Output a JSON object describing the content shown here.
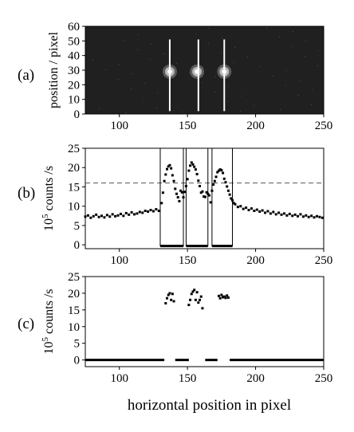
{
  "chart_data": [
    {
      "panel_label": "(a)",
      "type": "heatmap",
      "ylabel": "position / pixel",
      "xlim": [
        75,
        250
      ],
      "ylim": [
        0,
        60
      ],
      "xticks": [
        100,
        150,
        200,
        250
      ],
      "yticks": [
        0,
        10,
        20,
        30,
        40,
        50,
        60
      ],
      "background_color": "#202020",
      "spots": [
        {
          "x": 137,
          "y": 29
        },
        {
          "x": 157,
          "y": 29
        },
        {
          "x": 177,
          "y": 29
        }
      ],
      "markers": [
        {
          "x": 137,
          "y_from": 2,
          "y_to": 51
        },
        {
          "x": 158,
          "y_from": 2,
          "y_to": 51
        },
        {
          "x": 177,
          "y_from": 2,
          "y_to": 51
        }
      ]
    },
    {
      "panel_label": "(b)",
      "type": "scatter",
      "ylabel": "10",
      "ylabel_sup": "5",
      "ylabel_rest": " counts /s",
      "xlim": [
        75,
        250
      ],
      "ylim": [
        -1,
        25
      ],
      "xticks": [
        100,
        150,
        200,
        250
      ],
      "yticks": [
        0,
        5,
        10,
        15,
        20,
        25
      ],
      "threshold": 16,
      "boxes": [
        [
          130,
          147
        ],
        [
          149,
          165
        ],
        [
          168,
          183
        ]
      ],
      "series": [
        {
          "x": [
            75,
            77,
            79,
            81,
            83,
            85,
            87,
            89,
            91,
            93,
            95,
            97,
            99,
            101,
            103,
            105,
            107,
            109,
            111,
            113,
            115,
            117,
            119,
            121,
            123,
            125,
            127,
            129,
            131,
            132,
            133,
            134,
            135,
            136,
            137,
            138,
            139,
            140,
            141,
            142,
            143,
            144,
            145,
            146,
            147,
            148,
            149,
            150,
            151,
            152,
            153,
            154,
            155,
            156,
            157,
            158,
            159,
            160,
            161,
            162,
            163,
            164,
            165,
            166,
            167,
            168,
            169,
            170,
            171,
            172,
            173,
            174,
            175,
            176,
            177,
            178,
            179,
            180,
            181,
            182,
            183,
            184,
            185,
            187,
            189,
            191,
            193,
            195,
            197,
            199,
            201,
            203,
            205,
            207,
            209,
            211,
            213,
            215,
            217,
            219,
            221,
            223,
            225,
            227,
            229,
            231,
            233,
            235,
            237,
            239,
            241,
            243,
            245,
            247,
            249
          ],
          "y": [
            7.3,
            7.6,
            7,
            7.4,
            7.8,
            7.2,
            7.5,
            7.1,
            7.7,
            7.3,
            7.9,
            7.4,
            7.6,
            8,
            7.5,
            8.2,
            7.8,
            8.4,
            7.9,
            8.1,
            8.5,
            8.3,
            8.8,
            8.6,
            9,
            8.7,
            9.2,
            8.8,
            10.8,
            13.5,
            16.5,
            18.2,
            19.6,
            20.3,
            20.6,
            19.8,
            18,
            16.5,
            14.5,
            13.2,
            12.3,
            11.3,
            14,
            13.6,
            12.3,
            13.7,
            15.2,
            17,
            19.2,
            20.5,
            21.3,
            20.8,
            20.2,
            19.5,
            18.3,
            16.6,
            15.2,
            13.5,
            13.8,
            12.5,
            12.4,
            13.6,
            13.2,
            12.8,
            11,
            14,
            15.6,
            16.5,
            17.6,
            18.8,
            19.2,
            19.5,
            19.3,
            18.6,
            17.1,
            16.2,
            15.1,
            14,
            13,
            12,
            11.5,
            10.8,
            10.5,
            9.8,
            10,
            9.3,
            9.6,
            9,
            9.4,
            8.8,
            9.1,
            8.6,
            8.9,
            8.3,
            8.7,
            8.1,
            8.5,
            7.9,
            8.3,
            7.8,
            8.1,
            7.6,
            8,
            7.5,
            7.8,
            7.4,
            7.9,
            7.3,
            7.6,
            7.2,
            7.5,
            7.1,
            7.4,
            7.2,
            7
          ]
        }
      ]
    },
    {
      "panel_label": "(c)",
      "type": "scatter",
      "ylabel": "10",
      "ylabel_sup": "5",
      "ylabel_rest": " counts /s",
      "xlabel": "horizontal position in pixel",
      "xlim": [
        75,
        250
      ],
      "ylim": [
        -2,
        25
      ],
      "xticks": [
        100,
        150,
        200,
        250
      ],
      "yticks": [
        0,
        5,
        10,
        15,
        20,
        25
      ],
      "zero_segments": [
        [
          75,
          133
        ],
        [
          141,
          151
        ],
        [
          163,
          172
        ],
        [
          181,
          250
        ]
      ],
      "series": [
        {
          "x": [
            134,
            135,
            136,
            137,
            138,
            139,
            140,
            151,
            152,
            153,
            154,
            155,
            156,
            157,
            158,
            159,
            160,
            161,
            173,
            174,
            175,
            176,
            177,
            178,
            179,
            180
          ],
          "y": [
            17,
            18.5,
            19.5,
            20,
            18,
            19.8,
            17.6,
            16.5,
            18,
            19.8,
            20.5,
            21,
            18,
            20.3,
            17.2,
            18,
            19,
            15.5,
            19.2,
            18.5,
            19.5,
            18.8,
            19,
            18.6,
            19.3,
            18.7
          ]
        }
      ]
    }
  ]
}
